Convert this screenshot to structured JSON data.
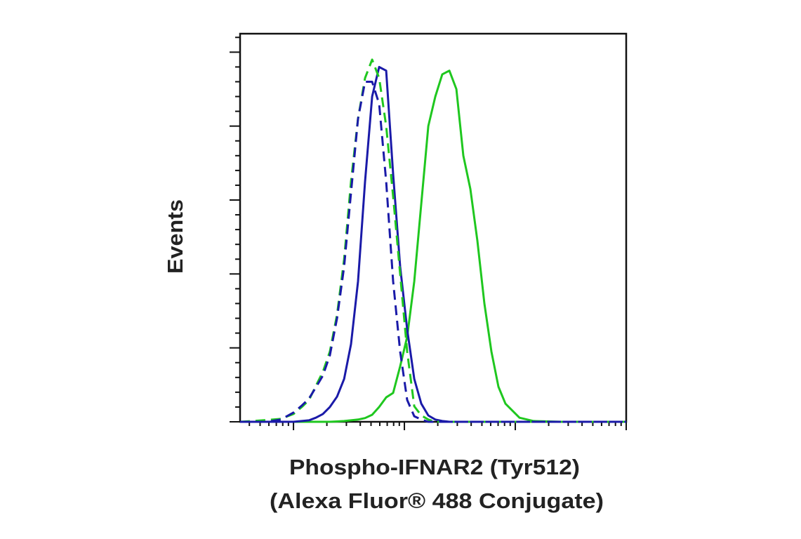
{
  "chart_data": {
    "type": "line",
    "ylabel": "Events",
    "xlabel": [
      "Phospho-IFNAR2 (Tyr512)",
      "(Alexa Fluor® 488 Conjugate)"
    ],
    "xscale": "log",
    "xlim": [
      33,
      100000
    ],
    "xticks": [
      100,
      1000,
      10000,
      100000
    ],
    "xminorticks": [
      40,
      50,
      60,
      70,
      80,
      90,
      200,
      300,
      400,
      500,
      600,
      700,
      800,
      900,
      2000,
      3000,
      4000,
      5000,
      6000,
      7000,
      8000,
      9000,
      20000,
      30000,
      40000,
      50000,
      60000,
      70000,
      80000,
      90000
    ],
    "ylim": [
      0,
      105
    ],
    "yticks": [
      0,
      20,
      40,
      60,
      80,
      100
    ],
    "yminorticks": [
      4,
      8,
      12,
      16,
      24,
      28,
      32,
      36,
      44,
      48,
      52,
      56,
      64,
      68,
      72,
      76,
      84,
      88,
      92,
      96,
      104
    ],
    "x": [
      33,
      43,
      57.5,
      76.9,
      100,
      119,
      138,
      159,
      184,
      213,
      247,
      286,
      330,
      382,
      442,
      512,
      592,
      685,
      792,
      916,
      1060,
      1227,
      1419,
      1642,
      1900,
      2197,
      2542,
      2941,
      3401,
      3935,
      4552,
      5266,
      6093,
      7049,
      8155,
      10916,
      14609,
      26165,
      54231,
      100000
    ],
    "series": [
      {
        "color": "#1fc71f",
        "dashed": false,
        "values": [
          0,
          0,
          0,
          0,
          0,
          0,
          0,
          0,
          0,
          0,
          0.1,
          0.2,
          0.4,
          0.6,
          1.0,
          1.9,
          4.0,
          6.6,
          7.8,
          15,
          23,
          38,
          59,
          80,
          88,
          94,
          95,
          90,
          72,
          63,
          49,
          32,
          19,
          9.5,
          4.9,
          1.1,
          0.2,
          0,
          0,
          0
        ]
      },
      {
        "color": "#1a1aa8",
        "dashed": false,
        "values": [
          0,
          0,
          0,
          0,
          0,
          0.2,
          0.4,
          1.1,
          2.1,
          4.0,
          6.8,
          11.6,
          21,
          38,
          65,
          88,
          96,
          95,
          67,
          42,
          25,
          11.6,
          4.9,
          1.7,
          0.6,
          0.2,
          0,
          0,
          0,
          0,
          0,
          0,
          0,
          0,
          0,
          0,
          0,
          0,
          0,
          0
        ]
      },
      {
        "color": "#1fc71f",
        "dashed": true,
        "values": [
          0,
          0.2,
          0.5,
          0.8,
          2.1,
          4.0,
          5.9,
          9.7,
          13.5,
          19,
          29,
          44,
          65,
          82,
          93,
          98,
          93,
          80,
          61,
          40,
          19,
          4.2,
          1.7,
          0.6,
          0,
          0,
          0,
          0,
          0,
          0,
          0,
          0,
          0,
          0,
          0,
          0,
          0,
          0,
          0,
          0
        ]
      },
      {
        "color": "#1a1aa8",
        "dashed": true,
        "values": [
          0,
          0,
          0,
          0.6,
          2.5,
          4.4,
          6.3,
          9.3,
          12.5,
          18,
          28,
          42,
          62,
          82,
          92,
          92,
          86,
          65,
          38,
          19,
          5.9,
          1.5,
          0.6,
          0,
          0,
          0,
          0,
          0,
          0,
          0,
          0,
          0,
          0,
          0,
          0,
          0,
          0,
          0,
          0,
          0
        ]
      }
    ]
  }
}
